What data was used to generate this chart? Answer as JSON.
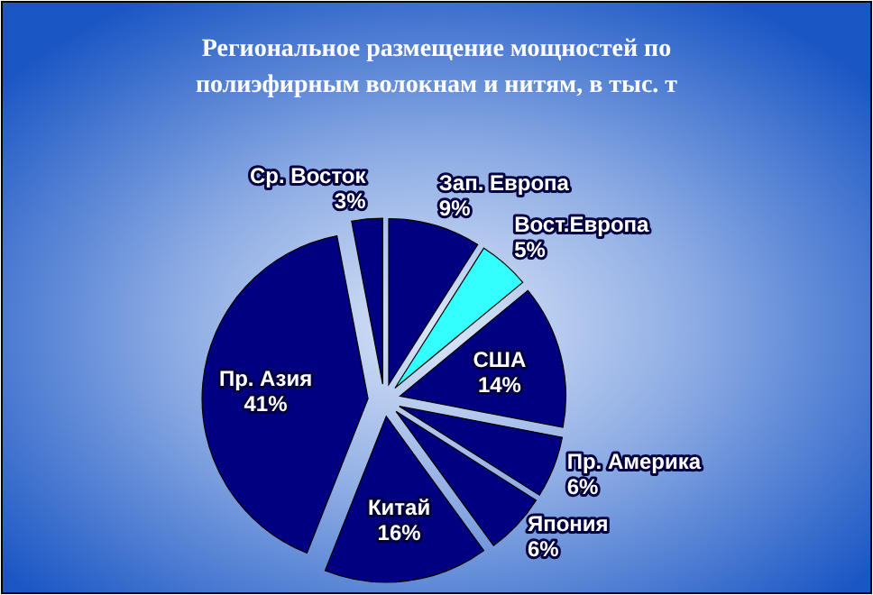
{
  "chart_data": {
    "type": "pie",
    "title": "Региональное размещение мощностей по полиэфирным волокнам и нитям, в тыс. т",
    "categories": [
      "Зап. Европа",
      "Вост.Европа",
      "США",
      "Пр. Америка",
      "Япония",
      "Китай",
      "Пр. Азия",
      "Ср. Восток"
    ],
    "values": [
      9,
      5,
      14,
      6,
      6,
      16,
      41,
      3
    ],
    "colors": [
      "#000080",
      "#33ffff",
      "#000080",
      "#000080",
      "#000080",
      "#000080",
      "#000080",
      "#000080"
    ],
    "value_labels": [
      "9%",
      "5%",
      "14%",
      "6%",
      "6%",
      "16%",
      "41%",
      "3%"
    ]
  }
}
